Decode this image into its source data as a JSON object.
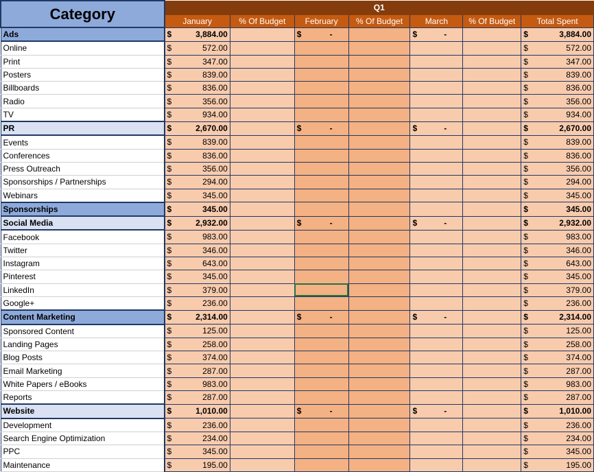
{
  "header": {
    "category": "Category",
    "quarter": "Q1",
    "columns": [
      "January",
      "% Of Budget",
      "February",
      "% Of Budget",
      "March",
      "% Of Budget",
      "Total Spent"
    ]
  },
  "currency": "$",
  "dash": "-",
  "rows": [
    {
      "label": "Ads",
      "type": "dark",
      "jan": "3,884.00",
      "dash": true,
      "total": "3,884.00"
    },
    {
      "label": "Online",
      "type": "item",
      "jan": "572.00",
      "total": "572.00"
    },
    {
      "label": "Print",
      "type": "item",
      "jan": "347.00",
      "total": "347.00"
    },
    {
      "label": "Posters",
      "type": "item",
      "jan": "839.00",
      "total": "839.00"
    },
    {
      "label": "Billboards",
      "type": "item",
      "jan": "836.00",
      "total": "836.00"
    },
    {
      "label": "Radio",
      "type": "item",
      "jan": "356.00",
      "total": "356.00"
    },
    {
      "label": "TV",
      "type": "item",
      "jan": "934.00",
      "total": "934.00"
    },
    {
      "label": "PR",
      "type": "light",
      "jan": "2,670.00",
      "dash": true,
      "total": "2,670.00"
    },
    {
      "label": "Events",
      "type": "item",
      "jan": "839.00",
      "total": "839.00"
    },
    {
      "label": "Conferences",
      "type": "item",
      "jan": "836.00",
      "total": "836.00"
    },
    {
      "label": "Press Outreach",
      "type": "item",
      "jan": "356.00",
      "total": "356.00"
    },
    {
      "label": "Sponsorships / Partnerships",
      "type": "item",
      "jan": "294.00",
      "total": "294.00"
    },
    {
      "label": "Webinars",
      "type": "item",
      "jan": "345.00",
      "total": "345.00"
    },
    {
      "label": "Sponsorships",
      "type": "dark",
      "jan": "345.00",
      "total": "345.00"
    },
    {
      "label": "Social Media",
      "type": "light",
      "jan": "2,932.00",
      "dash": true,
      "total": "2,932.00"
    },
    {
      "label": "Facebook",
      "type": "item",
      "jan": "983.00",
      "total": "983.00"
    },
    {
      "label": "Twitter",
      "type": "item",
      "jan": "346.00",
      "total": "346.00"
    },
    {
      "label": "Instagram",
      "type": "item",
      "jan": "643.00",
      "total": "643.00"
    },
    {
      "label": "Pinterest",
      "type": "item",
      "jan": "345.00",
      "total": "345.00"
    },
    {
      "label": "LinkedIn",
      "type": "item",
      "jan": "379.00",
      "total": "379.00",
      "selected": true
    },
    {
      "label": "Google+",
      "type": "item",
      "jan": "236.00",
      "total": "236.00"
    },
    {
      "label": "Content Marketing",
      "type": "dark",
      "jan": "2,314.00",
      "dash": true,
      "total": "2,314.00"
    },
    {
      "label": "Sponsored Content",
      "type": "item",
      "jan": "125.00",
      "total": "125.00"
    },
    {
      "label": "Landing Pages",
      "type": "item",
      "jan": "258.00",
      "total": "258.00"
    },
    {
      "label": "Blog Posts",
      "type": "item",
      "jan": "374.00",
      "total": "374.00"
    },
    {
      "label": "Email Marketing",
      "type": "item",
      "jan": "287.00",
      "total": "287.00"
    },
    {
      "label": "White Papers / eBooks",
      "type": "item",
      "jan": "983.00",
      "total": "983.00"
    },
    {
      "label": "Reports",
      "type": "item",
      "jan": "287.00",
      "total": "287.00"
    },
    {
      "label": "Website",
      "type": "light",
      "jan": "1,010.00",
      "dash": true,
      "total": "1,010.00"
    },
    {
      "label": "Development",
      "type": "item",
      "jan": "236.00",
      "total": "236.00"
    },
    {
      "label": "Search Engine Optimization",
      "type": "item",
      "jan": "234.00",
      "total": "234.00"
    },
    {
      "label": "PPC",
      "type": "item",
      "jan": "345.00",
      "total": "345.00"
    },
    {
      "label": "Maintenance",
      "type": "item",
      "jan": "195.00",
      "total": "195.00"
    }
  ]
}
